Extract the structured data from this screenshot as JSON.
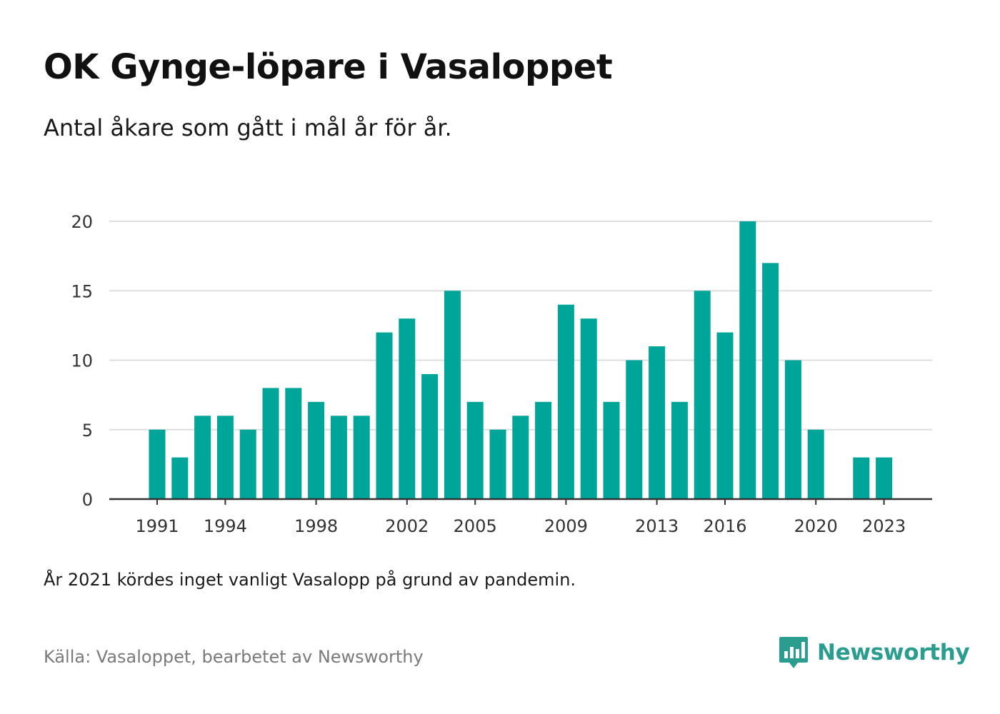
{
  "header": {
    "title": "OK Gynge-löpare i Vasaloppet",
    "subtitle": "Antal åkare som gått i mål år för år."
  },
  "footer": {
    "note": "År 2021 kördes inget vanligt Vasalopp på grund av pandemin.",
    "source": "Källa: Vasaloppet, bearbetet av Newsworthy",
    "brand": "Newsworthy"
  },
  "colors": {
    "bar": "#00a59a",
    "grid": "#dedede",
    "axis": "#333333",
    "brand": "#2a9d8f"
  },
  "chart_data": {
    "type": "bar",
    "title": "OK Gynge-löpare i Vasaloppet",
    "subtitle": "Antal åkare som gått i mål år för år.",
    "xlabel": "",
    "ylabel": "",
    "ylim": [
      0,
      20
    ],
    "yticks": [
      0,
      5,
      10,
      15,
      20
    ],
    "xticks": [
      1991,
      1994,
      1998,
      2002,
      2005,
      2009,
      2013,
      2016,
      2020,
      2023
    ],
    "grid": true,
    "legend": "none",
    "categories": [
      1991,
      1992,
      1993,
      1994,
      1995,
      1996,
      1997,
      1998,
      1999,
      2000,
      2001,
      2002,
      2003,
      2004,
      2005,
      2006,
      2007,
      2008,
      2009,
      2010,
      2011,
      2012,
      2013,
      2014,
      2015,
      2016,
      2017,
      2018,
      2019,
      2020,
      2021,
      2022,
      2023
    ],
    "values": [
      5,
      3,
      6,
      6,
      5,
      8,
      8,
      7,
      6,
      6,
      12,
      13,
      9,
      15,
      7,
      5,
      6,
      7,
      14,
      13,
      7,
      10,
      11,
      7,
      15,
      12,
      20,
      17,
      10,
      5,
      null,
      3,
      3
    ]
  }
}
